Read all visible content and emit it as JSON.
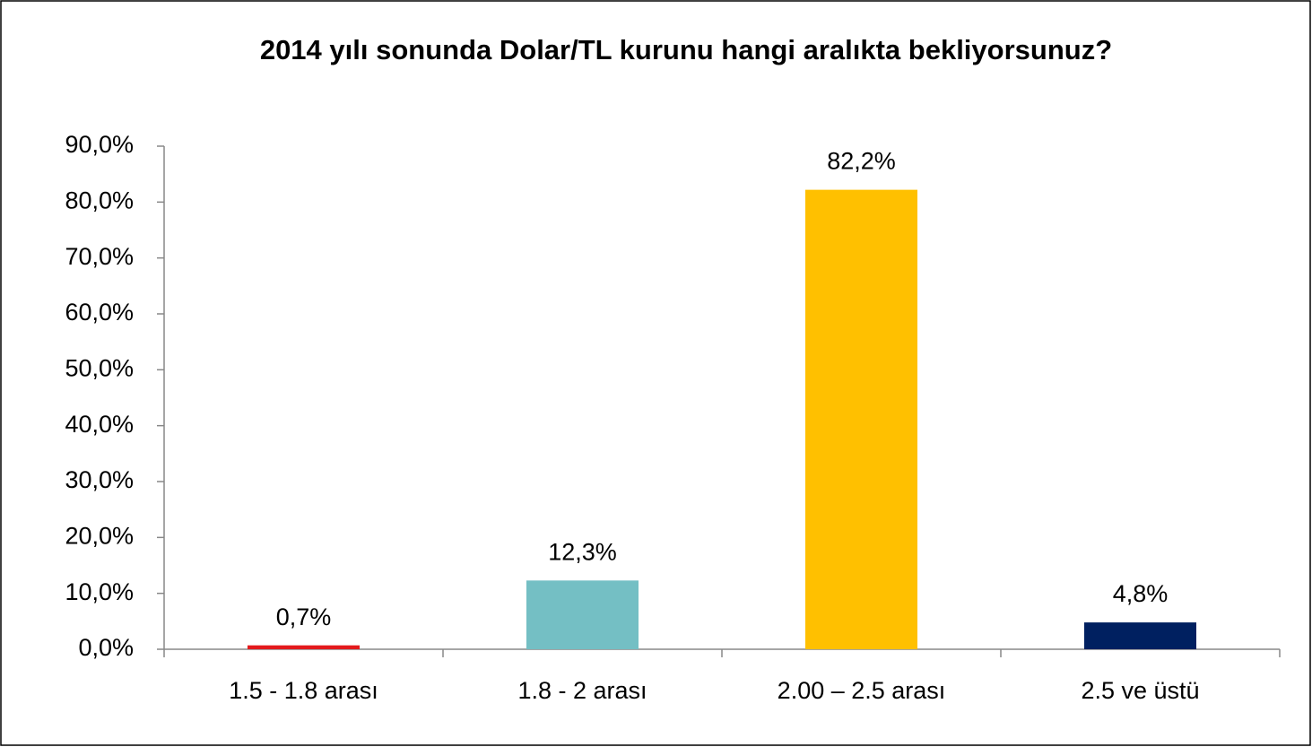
{
  "chart_data": {
    "type": "bar",
    "title": "2014 yılı sonunda Dolar/TL kurunu hangi aralıkta bekliyorsunuz?",
    "categories": [
      "1.5 - 1.8 arası",
      "1.8 - 2 arası",
      "2.00 – 2.5 arası",
      "2.5 ve üstü"
    ],
    "values": [
      0.7,
      12.3,
      82.2,
      4.8
    ],
    "value_labels": [
      "0,7%",
      "12,3%",
      "82,2%",
      "4,8%"
    ],
    "colors": [
      "#e31a1c",
      "#74bfc4",
      "#ffc000",
      "#002060"
    ],
    "ylim": [
      0,
      90
    ],
    "yticks": [
      {
        "value": 0,
        "label": "0,0%"
      },
      {
        "value": 10,
        "label": "10,0%"
      },
      {
        "value": 20,
        "label": "20,0%"
      },
      {
        "value": 30,
        "label": "30,0%"
      },
      {
        "value": 40,
        "label": "40,0%"
      },
      {
        "value": 50,
        "label": "50,0%"
      },
      {
        "value": 60,
        "label": "60,0%"
      },
      {
        "value": 70,
        "label": "70,0%"
      },
      {
        "value": 80,
        "label": "80,0%"
      },
      {
        "value": 90,
        "label": "90,0%"
      }
    ],
    "grid": false
  }
}
